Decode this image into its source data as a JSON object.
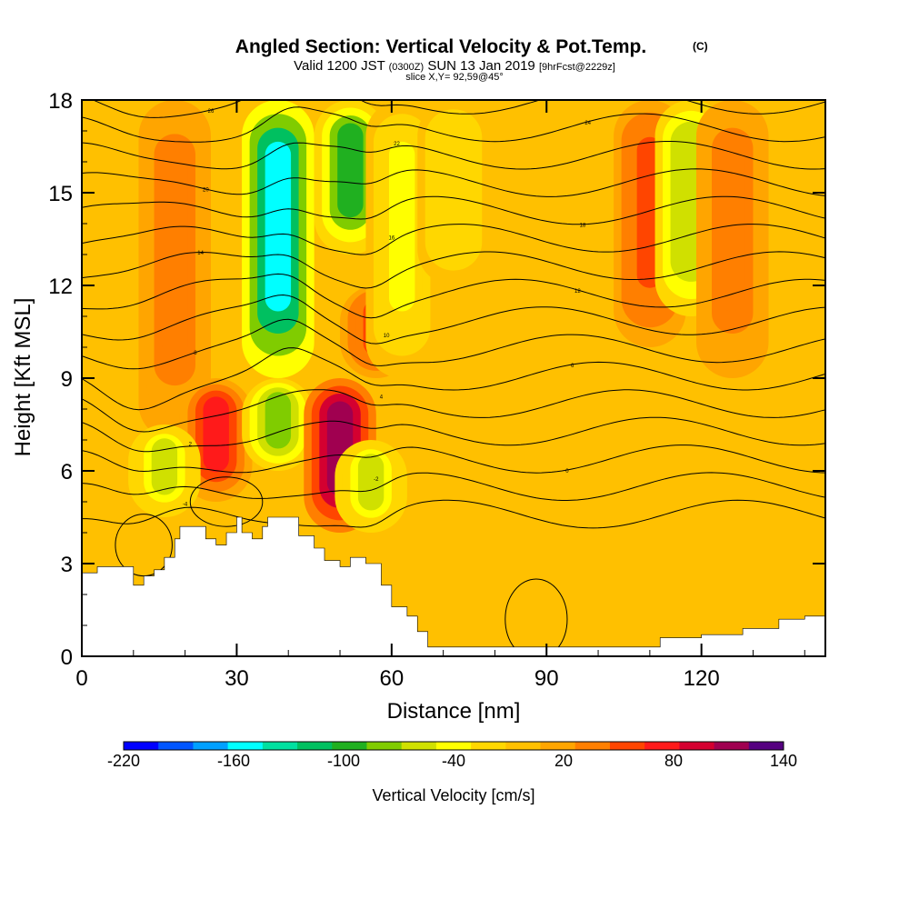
{
  "header": {
    "title": "Angled Section: Vertical Velocity & Pot.Temp.",
    "title_units": "(C)",
    "valid_prefix": "Valid 1200 JST",
    "valid_utc": "(0300Z)",
    "valid_date": "SUN 13 Jan 2019",
    "forecast": "[9hrFcst@2229z]",
    "slice": "slice X,Y= 92,59@45°"
  },
  "chart_data": {
    "type": "heatmap",
    "xlabel": "Distance [nm]",
    "ylabel": "Height [Kft MSL]",
    "xlim": [
      0,
      144
    ],
    "ylim": [
      0,
      18
    ],
    "x_ticks": [
      0,
      30,
      60,
      90,
      120
    ],
    "y_ticks": [
      0,
      3,
      6,
      9,
      12,
      15,
      18
    ],
    "colorbar": {
      "label": "Vertical Velocity [cm/s]",
      "levels": [
        -220,
        -200,
        -180,
        -160,
        -140,
        -120,
        -100,
        -80,
        -60,
        -40,
        -20,
        0,
        20,
        40,
        60,
        80,
        100,
        120,
        140
      ],
      "tick_labels": [
        "-220",
        "-160",
        "-100",
        "-40",
        "20",
        "80",
        "140"
      ],
      "colors": [
        "#0000ff",
        "#0055ff",
        "#00a0ff",
        "#00ffff",
        "#00e0a0",
        "#00c060",
        "#20b020",
        "#80cc00",
        "#d0e000",
        "#ffff00",
        "#ffd700",
        "#ffc000",
        "#ffa500",
        "#ff7f00",
        "#ff4500",
        "#ff1a1a",
        "#d40030",
        "#a00050",
        "#550080"
      ]
    },
    "background_level": 0,
    "velocity_features": [
      {
        "x": 18,
        "z_bottom": 7,
        "z_top": 18,
        "w": 45
      },
      {
        "x": 26,
        "z_bottom": 5,
        "z_top": 9,
        "w": 80
      },
      {
        "x": 16,
        "z_bottom": 4.5,
        "z_top": 7.5,
        "w": -60
      },
      {
        "x": 38,
        "z_bottom": 9,
        "z_top": 18,
        "w": -160
      },
      {
        "x": 38,
        "z_bottom": 6,
        "z_top": 9,
        "w": -90
      },
      {
        "x": 52,
        "z_bottom": 13,
        "z_top": 18,
        "w": -100
      },
      {
        "x": 50,
        "z_bottom": 4,
        "z_top": 9,
        "w": 120
      },
      {
        "x": 56,
        "z_bottom": 4,
        "z_top": 7,
        "w": -60
      },
      {
        "x": 57,
        "z_bottom": 9,
        "z_top": 12,
        "w": 60
      },
      {
        "x": 62,
        "z_bottom": 9,
        "z_top": 18,
        "w": -40
      },
      {
        "x": 72,
        "z_bottom": 12,
        "z_top": 18,
        "w": -30
      },
      {
        "x": 110,
        "z_bottom": 10,
        "z_top": 18,
        "w": 60
      },
      {
        "x": 118,
        "z_bottom": 11,
        "z_top": 18,
        "w": -70
      },
      {
        "x": 126,
        "z_bottom": 9,
        "z_top": 18,
        "w": 40
      }
    ],
    "isentrope_labels": [
      "-4",
      "-2",
      "0",
      "2",
      "4",
      "6",
      "8",
      "10",
      "12",
      "14",
      "16",
      "18",
      "20",
      "22",
      "24",
      "26"
    ],
    "terrain": [
      [
        0,
        2.7
      ],
      [
        3,
        2.9
      ],
      [
        8,
        2.9
      ],
      [
        10,
        2.3
      ],
      [
        12,
        2.6
      ],
      [
        14,
        2.8
      ],
      [
        16,
        3.2
      ],
      [
        18,
        3.8
      ],
      [
        19,
        4.2
      ],
      [
        22,
        4.2
      ],
      [
        24,
        3.8
      ],
      [
        26,
        3.6
      ],
      [
        28,
        4.0
      ],
      [
        30,
        4.5
      ],
      [
        31,
        4.0
      ],
      [
        33,
        3.8
      ],
      [
        35,
        4.2
      ],
      [
        36,
        4.5
      ],
      [
        40,
        4.5
      ],
      [
        42,
        3.9
      ],
      [
        45,
        3.5
      ],
      [
        47,
        3.1
      ],
      [
        50,
        2.9
      ],
      [
        52,
        3.2
      ],
      [
        55,
        3.0
      ],
      [
        58,
        2.3
      ],
      [
        60,
        1.6
      ],
      [
        63,
        1.3
      ],
      [
        65,
        0.8
      ],
      [
        67,
        0.3
      ],
      [
        75,
        0.3
      ],
      [
        85,
        0.3
      ],
      [
        95,
        0.3
      ],
      [
        105,
        0.3
      ],
      [
        110,
        0.3
      ],
      [
        112,
        0.6
      ],
      [
        116,
        0.6
      ],
      [
        120,
        0.7
      ],
      [
        128,
        0.9
      ],
      [
        135,
        1.2
      ],
      [
        140,
        1.3
      ],
      [
        144,
        1.3
      ]
    ]
  }
}
